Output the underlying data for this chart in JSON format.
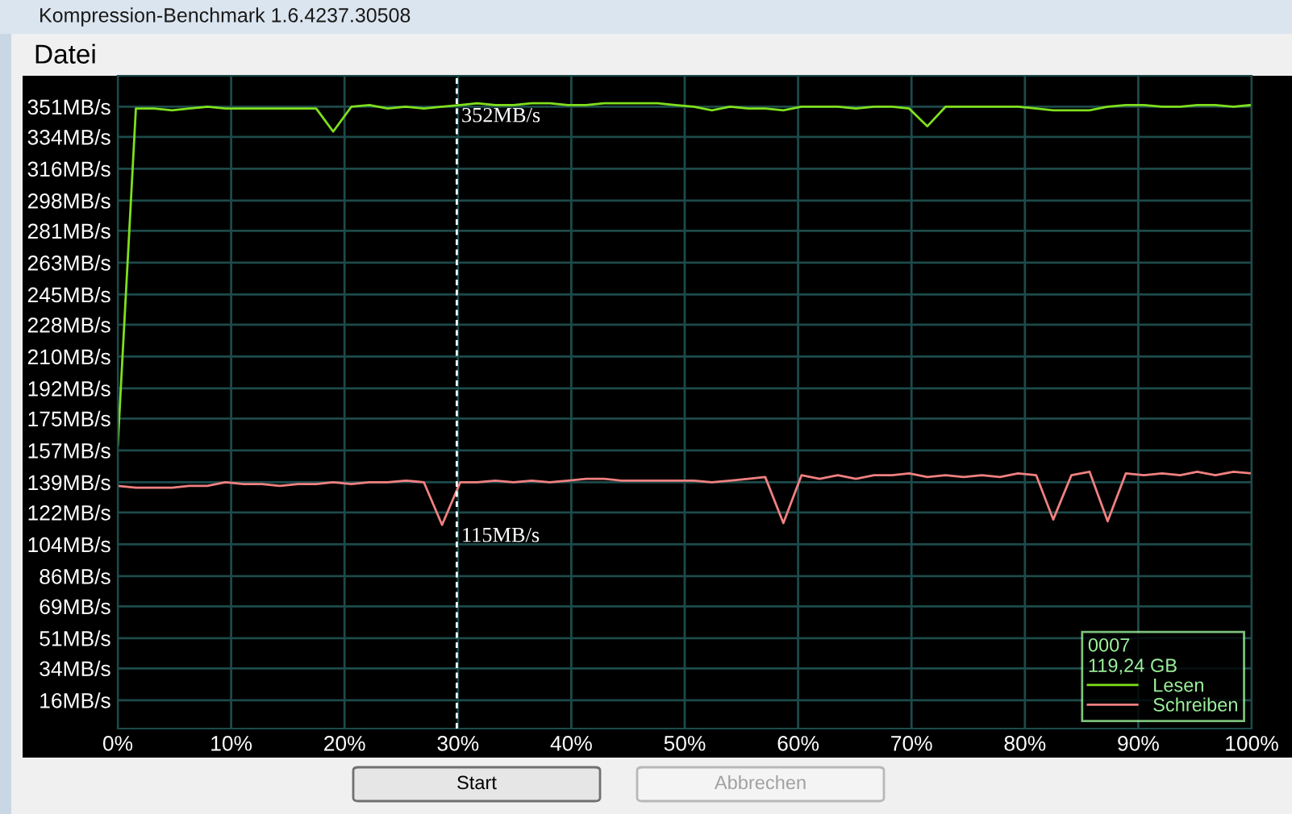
{
  "chart_data": {
    "type": "line",
    "title": "Kompression-Benchmark 1.6.4237.30508",
    "x": [
      0,
      1.6,
      3.2,
      4.8,
      6.3,
      7.9,
      9.5,
      11.1,
      12.7,
      14.3,
      15.9,
      17.5,
      19.0,
      20.6,
      22.2,
      23.8,
      25.4,
      27.0,
      28.6,
      30.2,
      31.7,
      33.3,
      34.9,
      36.5,
      38.1,
      39.7,
      41.3,
      42.9,
      44.4,
      46.0,
      47.6,
      49.2,
      50.8,
      52.4,
      54.0,
      55.6,
      57.1,
      58.7,
      60.3,
      61.9,
      63.5,
      65.1,
      66.7,
      68.3,
      69.8,
      71.4,
      73.0,
      74.6,
      76.2,
      77.8,
      79.4,
      81.0,
      82.5,
      84.1,
      85.7,
      87.3,
      88.9,
      90.5,
      92.1,
      93.7,
      95.2,
      96.8,
      98.4,
      100
    ],
    "series": [
      {
        "name": "Lesen",
        "color": "#7fe01c",
        "values": [
          160,
          350,
          350,
          349,
          350,
          351,
          350,
          350,
          350,
          350,
          350,
          350,
          337,
          351,
          352,
          350,
          351,
          350,
          351,
          352,
          353,
          352,
          352,
          353,
          353,
          352,
          352,
          353,
          353,
          353,
          353,
          352,
          351,
          349,
          351,
          350,
          350,
          349,
          351,
          351,
          351,
          350,
          351,
          351,
          350,
          340,
          351,
          351,
          351,
          351,
          351,
          350,
          349,
          349,
          349,
          351,
          352,
          352,
          351,
          351,
          352,
          352,
          351,
          352
        ]
      },
      {
        "name": "Schreiben",
        "color": "#f08080",
        "values": [
          137,
          136,
          136,
          136,
          137,
          137,
          139,
          138,
          138,
          137,
          138,
          138,
          139,
          138,
          139,
          139,
          140,
          139,
          115,
          139,
          139,
          140,
          139,
          140,
          139,
          140,
          141,
          141,
          140,
          140,
          140,
          140,
          140,
          139,
          140,
          141,
          142,
          116,
          143,
          141,
          143,
          141,
          143,
          143,
          144,
          142,
          143,
          142,
          143,
          142,
          144,
          143,
          118,
          143,
          145,
          117,
          144,
          143,
          144,
          143,
          145,
          143,
          145,
          144
        ]
      }
    ],
    "xlim": [
      0,
      100
    ],
    "xticks": [
      {
        "value": 0,
        "label": "0%"
      },
      {
        "value": 10,
        "label": "10%"
      },
      {
        "value": 20,
        "label": "20%"
      },
      {
        "value": 30,
        "label": "30%"
      },
      {
        "value": 40,
        "label": "40%"
      },
      {
        "value": 50,
        "label": "50%"
      },
      {
        "value": 60,
        "label": "60%"
      },
      {
        "value": 70,
        "label": "70%"
      },
      {
        "value": 80,
        "label": "80%"
      },
      {
        "value": 90,
        "label": "90%"
      },
      {
        "value": 100,
        "label": "100%"
      }
    ],
    "ylim": [
      0,
      368.5
    ],
    "yticks": [
      {
        "value": 16,
        "label": "16MB/s"
      },
      {
        "value": 34,
        "label": "34MB/s"
      },
      {
        "value": 51,
        "label": "51MB/s"
      },
      {
        "value": 69,
        "label": "69MB/s"
      },
      {
        "value": 86,
        "label": "86MB/s"
      },
      {
        "value": 104,
        "label": "104MB/s"
      },
      {
        "value": 122,
        "label": "122MB/s"
      },
      {
        "value": 139,
        "label": "139MB/s"
      },
      {
        "value": 157,
        "label": "157MB/s"
      },
      {
        "value": 175,
        "label": "175MB/s"
      },
      {
        "value": 192,
        "label": "192MB/s"
      },
      {
        "value": 210,
        "label": "210MB/s"
      },
      {
        "value": 228,
        "label": "228MB/s"
      },
      {
        "value": 245,
        "label": "245MB/s"
      },
      {
        "value": 263,
        "label": "263MB/s"
      },
      {
        "value": 281,
        "label": "281MB/s"
      },
      {
        "value": 298,
        "label": "298MB/s"
      },
      {
        "value": 316,
        "label": "316MB/s"
      },
      {
        "value": 334,
        "label": "334MB/s"
      },
      {
        "value": 351,
        "label": "351MB/s"
      }
    ],
    "grid": true,
    "legend": "bottom right",
    "legend_title": "0007\n119,24 GB",
    "ref_lines": [
      {
        "axis": "x",
        "value": 29.9,
        "color": "#ffffff",
        "line_style": "dashed"
      }
    ],
    "annotations": [
      "Datei",
      {
        "text": "352MB/s",
        "x": 29.9,
        "y": 352
      },
      {
        "text": "115MB/s",
        "x": 29.9,
        "y": 115
      },
      "Start",
      "Abbrechen"
    ]
  }
}
